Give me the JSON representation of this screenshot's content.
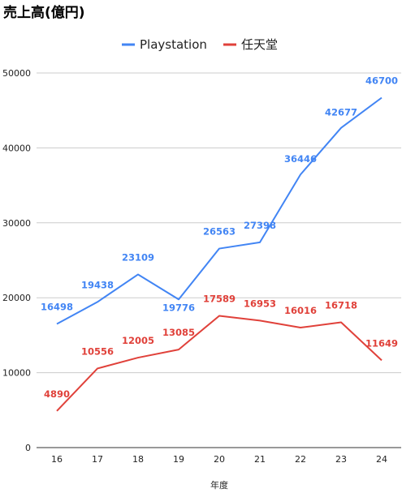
{
  "chart_data": {
    "type": "line",
    "title": "売上高(億円)",
    "xlabel": "年度",
    "ylabel": "",
    "categories": [
      "16",
      "17",
      "18",
      "19",
      "20",
      "21",
      "22",
      "23",
      "24"
    ],
    "ylim": [
      0,
      50000
    ],
    "yticks": [
      "0",
      "10000",
      "20000",
      "30000",
      "40000",
      "50000"
    ],
    "grid": true,
    "legend_position": "top",
    "series": [
      {
        "name": "Playstation",
        "color": "#4285f4",
        "values": [
          16498,
          19438,
          23109,
          19776,
          26563,
          27398,
          36446,
          42677,
          46700
        ],
        "labels": [
          "16498",
          "19438",
          "23109",
          "19776",
          "26563",
          "27398",
          "36446",
          "42677",
          "46700"
        ]
      },
      {
        "name": "任天堂",
        "color": "#e0413a",
        "values": [
          4890,
          10556,
          12005,
          13085,
          17589,
          16953,
          16016,
          16718,
          11649
        ],
        "labels": [
          "4890",
          "10556",
          "12005",
          "13085",
          "17589",
          "16953",
          "16016",
          "16718",
          "11649"
        ]
      }
    ]
  }
}
